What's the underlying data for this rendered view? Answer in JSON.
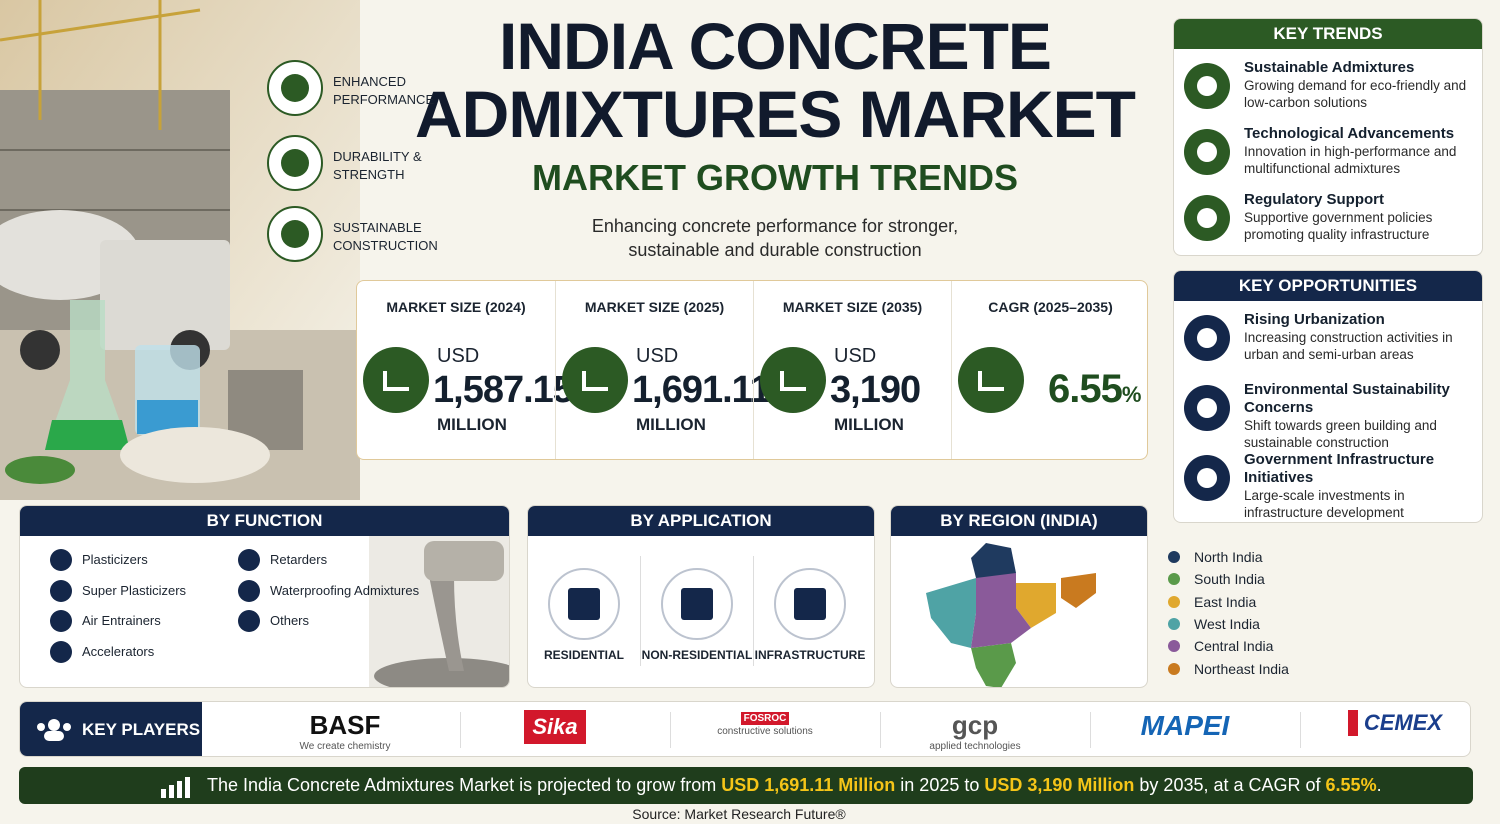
{
  "header": {
    "title_line1": "INDIA CONCRETE",
    "title_line2": "ADMIXTURES MARKET",
    "subtitle": "MARKET GROWTH TRENDS",
    "tagline_line1": "Enhancing concrete performance for stronger,",
    "tagline_line2": "sustainable and durable construction"
  },
  "features": [
    "ENHANCED PERFORMANCE",
    "DURABILITY & STRENGTH",
    "SUSTAINABLE CONSTRUCTION"
  ],
  "market_stats": [
    {
      "label": "MARKET SIZE (2024)",
      "currency": "USD",
      "value": "1,587.15",
      "unit": "MILLION"
    },
    {
      "label": "MARKET SIZE (2025)",
      "currency": "USD",
      "value": "1,691.11",
      "unit": "MILLION"
    },
    {
      "label": "MARKET SIZE (2035)",
      "currency": "USD",
      "value": "3,190",
      "unit": "MILLION"
    },
    {
      "label": "CAGR (2025–2035)",
      "value": "6.55",
      "unit": "%"
    }
  ],
  "key_trends": {
    "title": "KEY TRENDS",
    "items": [
      {
        "title": "Sustainable Admixtures",
        "text": "Growing demand for eco-friendly and low-carbon solutions"
      },
      {
        "title": "Technological Advancements",
        "text": "Innovation in high-performance and multifunctional admixtures"
      },
      {
        "title": "Regulatory Support",
        "text": "Supportive government policies promoting quality infrastructure"
      }
    ]
  },
  "key_opportunities": {
    "title": "KEY OPPORTUNITIES",
    "items": [
      {
        "title": "Rising Urbanization",
        "text": "Increasing construction activities in urban and semi-urban areas"
      },
      {
        "title": "Environmental Sustainability Concerns",
        "text": "Shift towards green building and sustainable construction"
      },
      {
        "title": "Government Infrastructure Initiatives",
        "text": "Large-scale investments in infrastructure development"
      }
    ]
  },
  "by_function": {
    "title": "BY FUNCTION",
    "items": [
      "Plasticizers",
      "Super Plasticizers",
      "Air Entrainers",
      "Accelerators",
      "Retarders",
      "Waterproofing Admixtures",
      "Others"
    ]
  },
  "by_application": {
    "title": "BY APPLICATION",
    "items": [
      "RESIDENTIAL",
      "NON-RESIDENTIAL",
      "INFRASTRUCTURE"
    ]
  },
  "by_region": {
    "title": "BY REGION (INDIA)",
    "items": [
      {
        "name": "North India",
        "color": "#1f3a5f"
      },
      {
        "name": "South India",
        "color": "#5a9a4a"
      },
      {
        "name": "East India",
        "color": "#e0a82e"
      },
      {
        "name": "West India",
        "color": "#4fa3a5"
      },
      {
        "name": "Central India",
        "color": "#8a5a9a"
      },
      {
        "name": "Northeast India",
        "color": "#c97a1f"
      }
    ]
  },
  "key_players": {
    "title": "KEY PLAYERS",
    "logos": [
      {
        "name": "BASF",
        "tagline": "We create chemistry"
      },
      {
        "name": "Sika"
      },
      {
        "name": "FOSROC",
        "tagline": "constructive solutions"
      },
      {
        "name": "gcp",
        "tagline": "applied technologies"
      },
      {
        "name": "MAPEI"
      },
      {
        "name": "CEMEX"
      }
    ]
  },
  "footer": {
    "summary": [
      "The India Concrete Admixtures Market is projected to grow from ",
      "USD 1,691.11 Million",
      " in 2025 to ",
      "USD 3,190 Million",
      " by 2035, at a CAGR of ",
      "6.55%",
      "."
    ],
    "source": "Source: Market Research Future®"
  }
}
